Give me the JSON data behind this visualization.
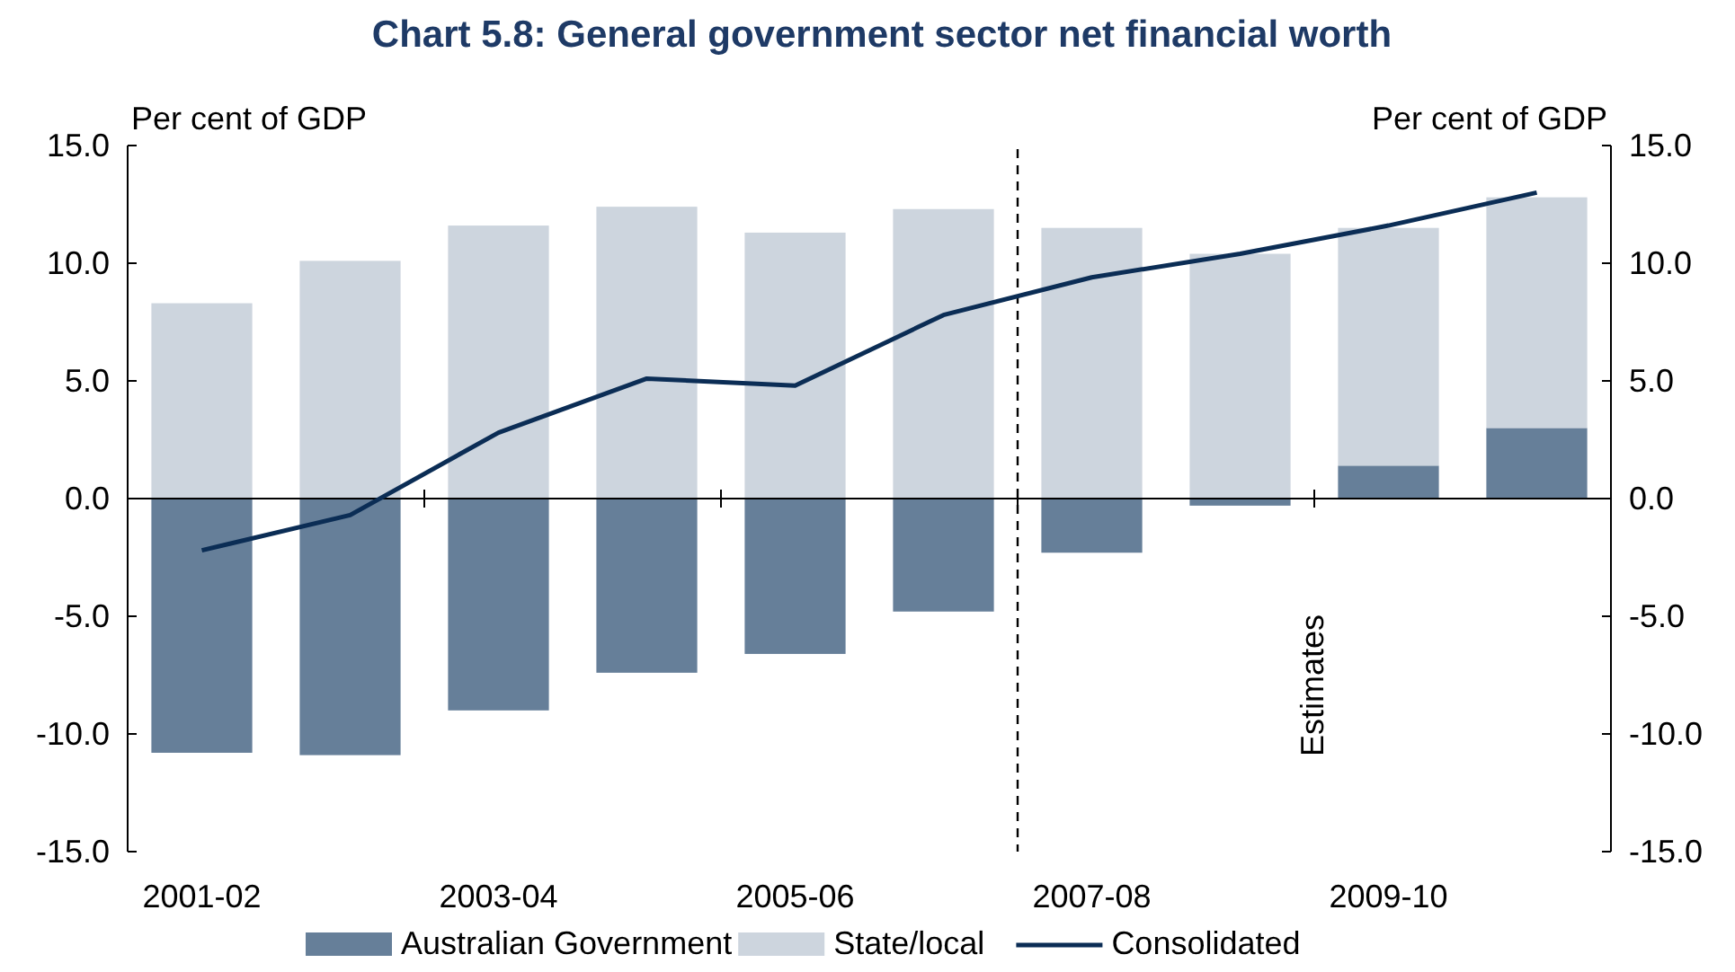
{
  "chart_data": {
    "type": "bar",
    "title": "Chart 5.8: General government sector net financial worth",
    "ylabel": "Per cent of GDP",
    "y2label": "Per cent of GDP",
    "categories": [
      "2001-02",
      null,
      "2003-04",
      null,
      "2005-06",
      null,
      "2007-08",
      null,
      "2009-10",
      null
    ],
    "stacked": true,
    "series": [
      {
        "name": "Australian Government",
        "color": "#667f99",
        "values": [
          -10.8,
          -10.9,
          -9.0,
          -7.4,
          -6.6,
          -4.8,
          -2.3,
          -0.3,
          1.4,
          3.0
        ]
      },
      {
        "name": "State/local",
        "color": "#cdd5de",
        "values": [
          8.3,
          10.1,
          11.6,
          12.4,
          11.3,
          12.3,
          11.5,
          10.4,
          10.1,
          9.8
        ]
      },
      {
        "name": "Consolidated",
        "type": "line",
        "color": "#0b2d55",
        "values": [
          -2.2,
          -0.7,
          2.8,
          5.1,
          4.8,
          7.8,
          9.4,
          10.4,
          11.6,
          13.0
        ]
      }
    ],
    "ylim": [
      -15,
      15
    ],
    "yticks": [
      {
        "value": -15,
        "label": "-15.0"
      },
      {
        "value": -10,
        "label": "-10.0"
      },
      {
        "value": -5,
        "label": "-5.0"
      },
      {
        "value": 0,
        "label": "0.0"
      },
      {
        "value": 5,
        "label": "5.0"
      },
      {
        "value": 10,
        "label": "10.0"
      },
      {
        "value": 15,
        "label": "15.0"
      }
    ],
    "y2lim": [
      -15,
      15
    ],
    "y2ticks": [
      {
        "value": -15,
        "label": "-15.0"
      },
      {
        "value": -10,
        "label": "-10.0"
      },
      {
        "value": -5,
        "label": "-5.0"
      },
      {
        "value": 0,
        "label": "0.0"
      },
      {
        "value": 5,
        "label": "5.0"
      },
      {
        "value": 10,
        "label": "10.0"
      },
      {
        "value": 15,
        "label": "15.0"
      }
    ],
    "ref_lines": [
      {
        "axis": "x",
        "value": "2007-08",
        "line_style": "dashed",
        "color": "#000000"
      }
    ],
    "annotations": [
      "Estimates"
    ],
    "legend": "bottom",
    "grid": false
  }
}
